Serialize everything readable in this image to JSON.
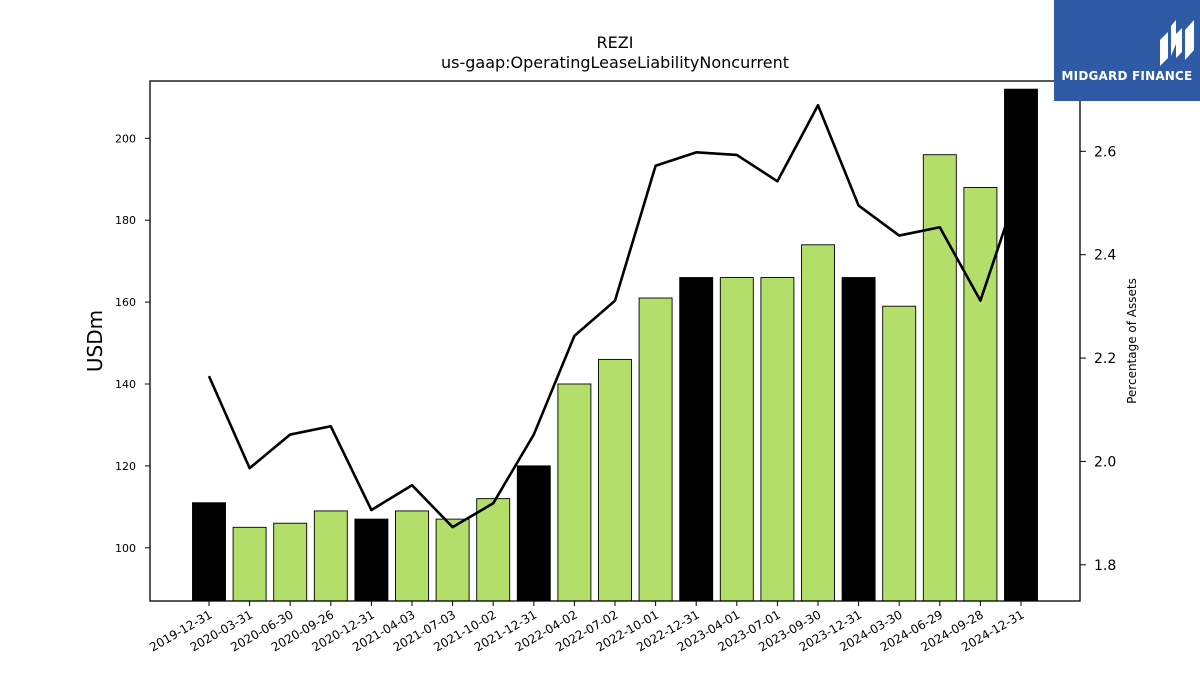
{
  "brand": {
    "name": "MIDGARD FINANCE"
  },
  "chart_data": {
    "type": "bar",
    "title": "REZI",
    "subtitle": "us-gaap:OperatingLeaseLiabilityNoncurrent",
    "ylabel": "USDm",
    "y2label": "Percentage of Assets",
    "ylim": [
      87,
      214
    ],
    "y2lim": [
      1.73,
      2.736
    ],
    "yticks": [
      100,
      120,
      140,
      160,
      180,
      200
    ],
    "y2ticks": [
      1.8,
      2.0,
      2.2,
      2.4,
      2.6
    ],
    "categories": [
      "2019-12-31",
      "2020-03-31",
      "2020-06-30",
      "2020-09-26",
      "2020-12-31",
      "2021-04-03",
      "2021-07-03",
      "2021-10-02",
      "2021-12-31",
      "2022-04-02",
      "2022-07-02",
      "2022-10-01",
      "2022-12-31",
      "2023-04-01",
      "2023-07-01",
      "2023-09-30",
      "2023-12-31",
      "2024-03-30",
      "2024-06-29",
      "2024-09-28",
      "2024-12-31"
    ],
    "series": [
      {
        "kind": "bar",
        "values": [
          111,
          105,
          106,
          109,
          107,
          109,
          107,
          112,
          120,
          140,
          146,
          161,
          166,
          166,
          166,
          174,
          166,
          159,
          196,
          188,
          212
        ],
        "annual_flags": [
          true,
          false,
          false,
          false,
          true,
          false,
          false,
          false,
          true,
          false,
          false,
          false,
          true,
          false,
          false,
          false,
          true,
          false,
          false,
          false,
          true
        ]
      },
      {
        "kind": "line",
        "axis": "right",
        "values": [
          2.165,
          1.987,
          2.052,
          2.068,
          1.906,
          1.954,
          1.873,
          1.919,
          2.052,
          2.243,
          2.311,
          2.572,
          2.598,
          2.593,
          2.542,
          2.689,
          2.495,
          2.437,
          2.453,
          2.311,
          2.545
        ]
      }
    ],
    "colors": {
      "quarter_bar": "#b3de69",
      "annual_bar": "#000000",
      "line": "#000000"
    },
    "grid": false
  }
}
